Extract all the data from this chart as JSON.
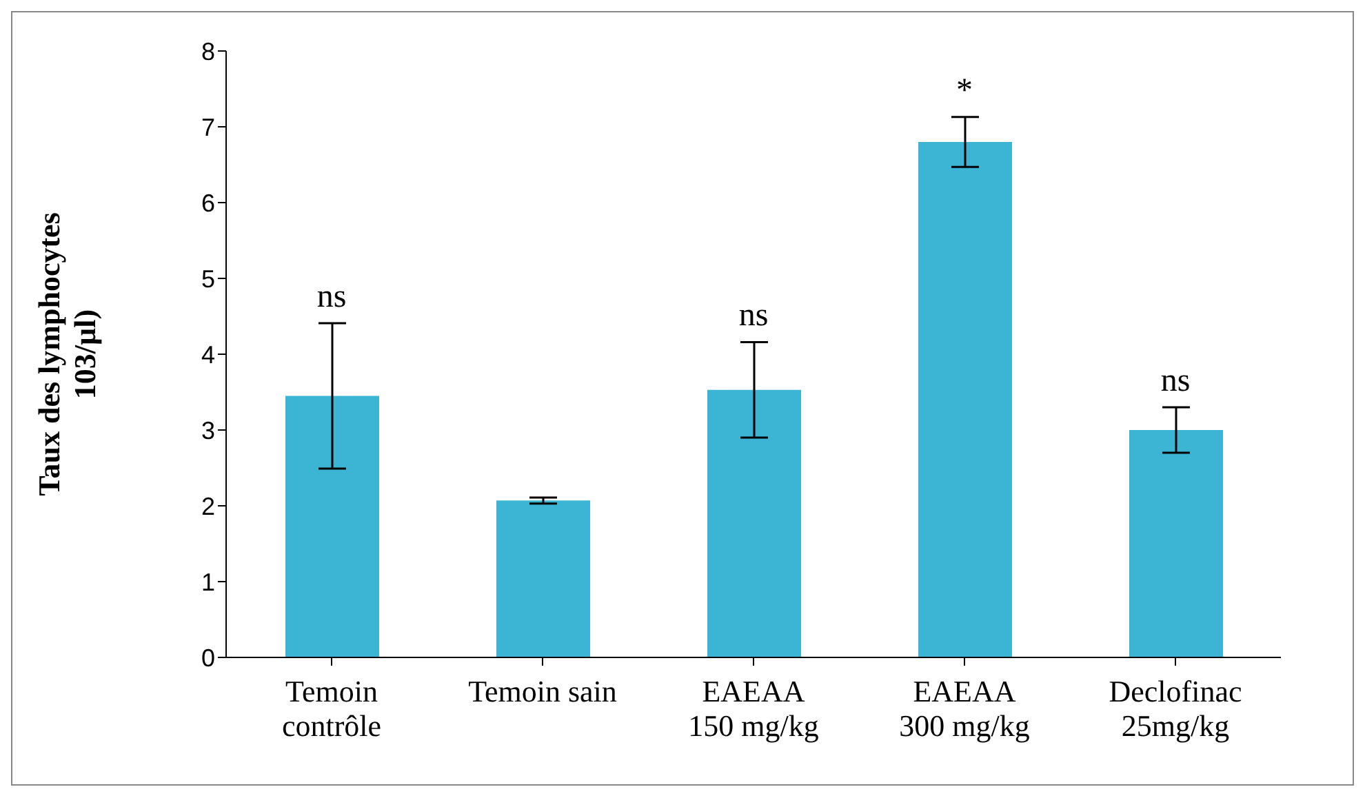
{
  "chart_data": {
    "type": "bar",
    "ylabel": "Taux des lymphocytes 103/µl)",
    "categories": [
      "Temoin\ncontrôle",
      "Temoin sain",
      "EAEAA\n150 mg/kg",
      "EAEAA\n300 mg/kg",
      "Declofinac\n25mg/kg"
    ],
    "values": [
      3.45,
      2.07,
      3.53,
      6.8,
      3.0
    ],
    "errors": [
      0.96,
      0.04,
      0.63,
      0.33,
      0.3
    ],
    "color": "#3cb4d4",
    "ylim": [
      0,
      8
    ],
    "yticks": [
      0,
      1,
      2,
      3,
      4,
      5,
      6,
      7,
      8
    ],
    "grid": false,
    "legend": false,
    "value_labels": [
      "ns",
      null,
      "ns",
      "*",
      "ns"
    ]
  }
}
